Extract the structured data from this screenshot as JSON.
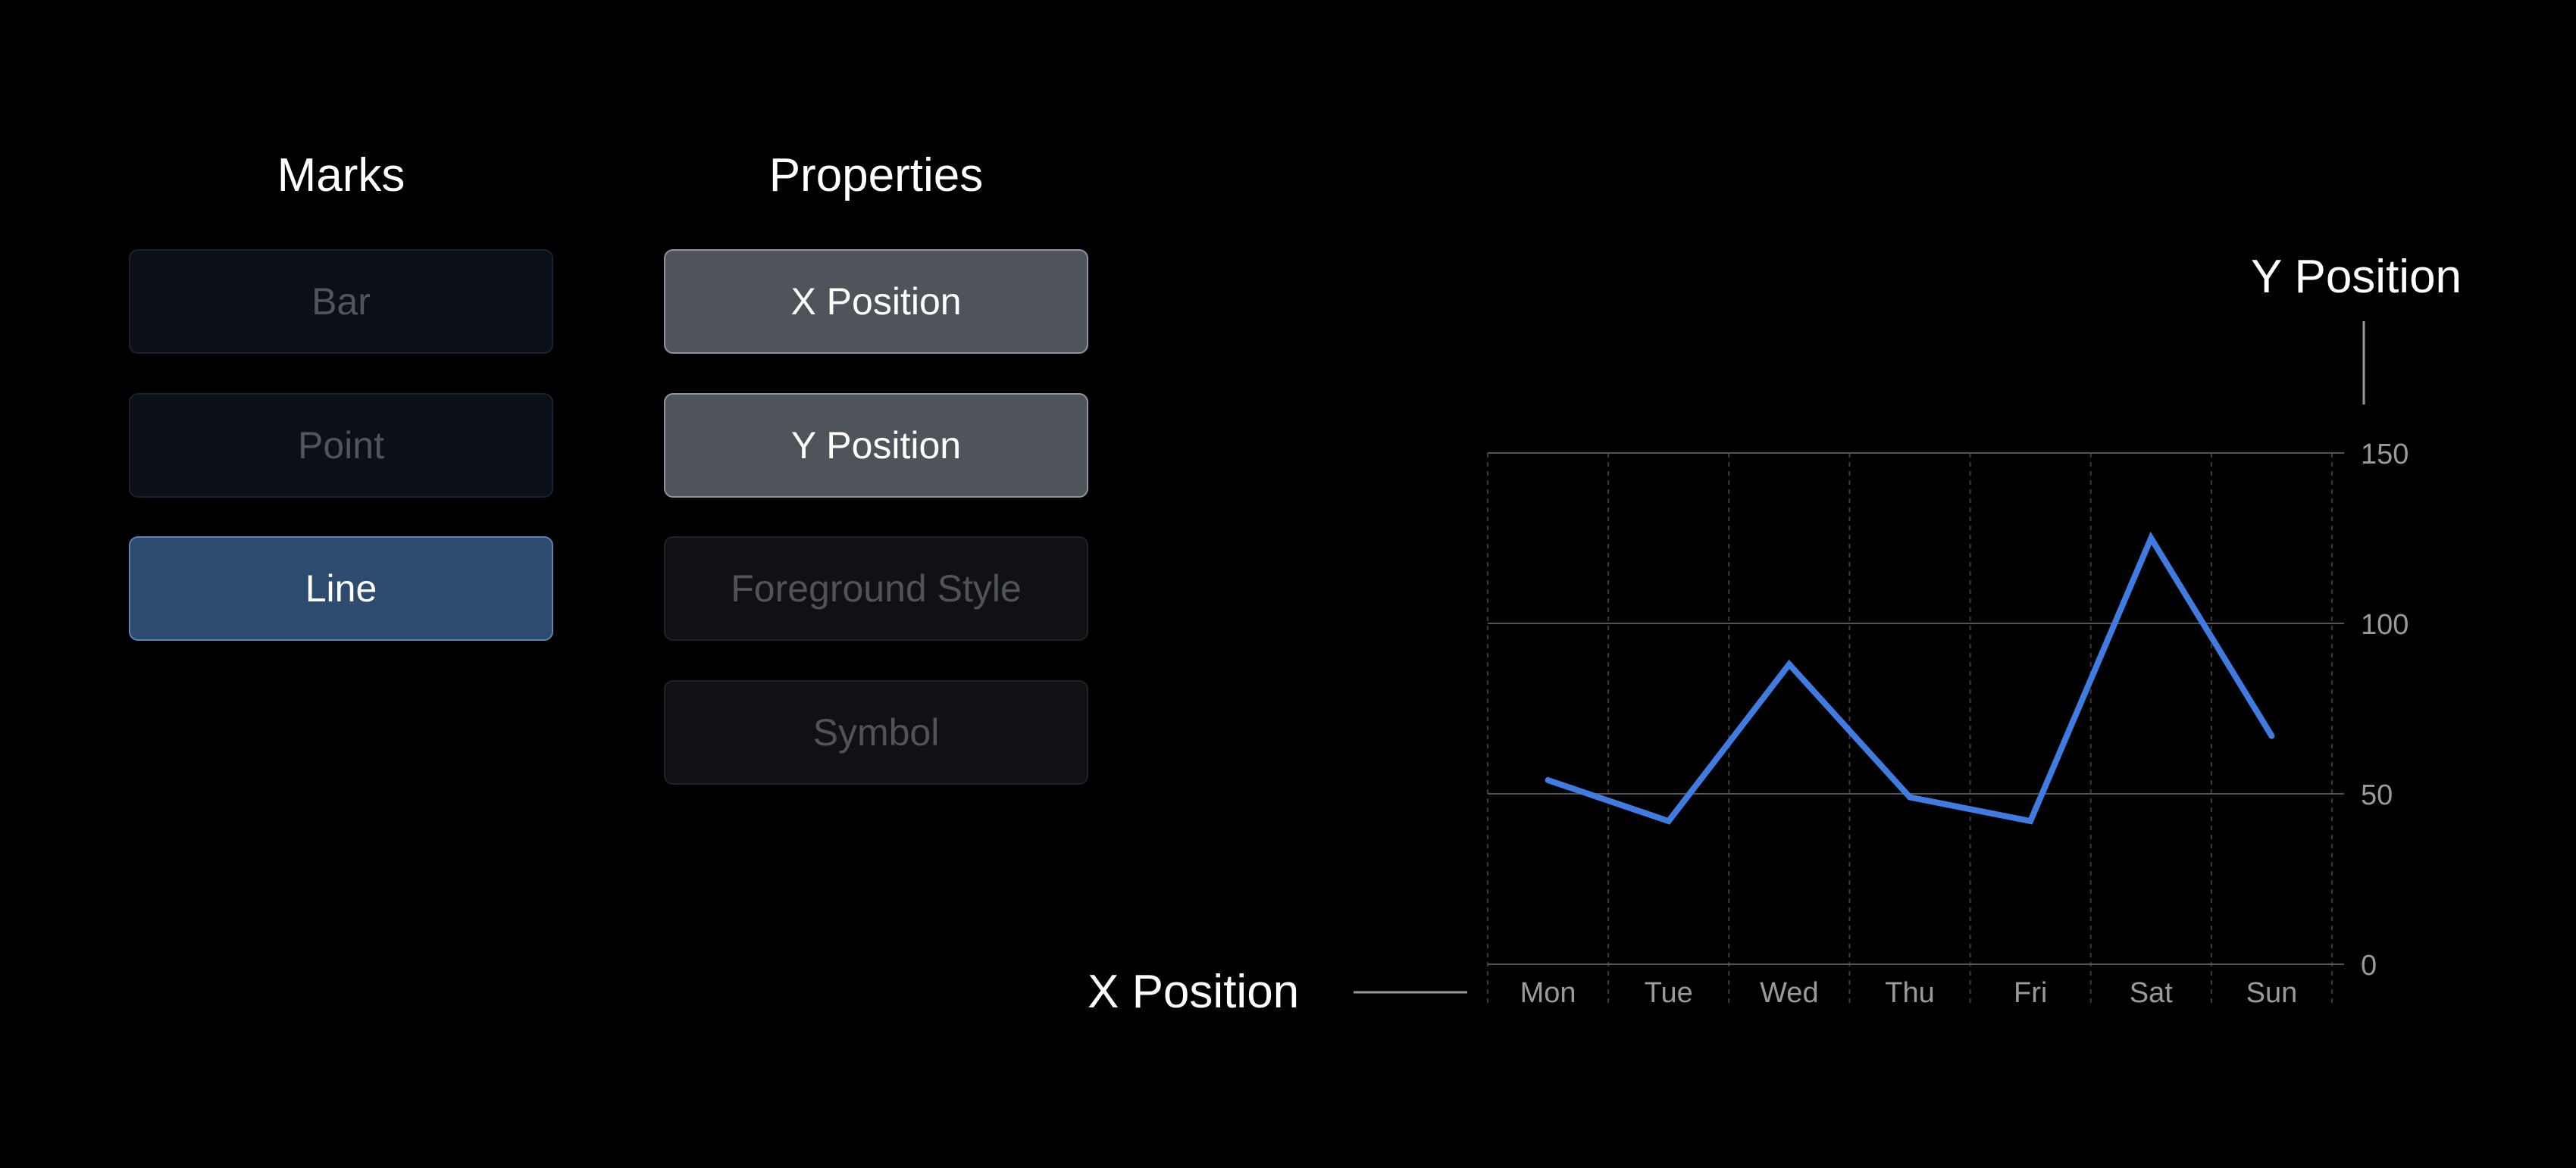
{
  "marks": {
    "heading": "Marks",
    "items": [
      {
        "label": "Bar",
        "state": "dim"
      },
      {
        "label": "Point",
        "state": "dim"
      },
      {
        "label": "Line",
        "state": "active"
      }
    ]
  },
  "properties": {
    "heading": "Properties",
    "items": [
      {
        "label": "X Position",
        "state": "active"
      },
      {
        "label": "Y Position",
        "state": "active"
      },
      {
        "label": "Foreground Style",
        "state": "dim"
      },
      {
        "label": "Symbol",
        "state": "dim"
      }
    ]
  },
  "callouts": {
    "x_axis": "X Position",
    "y_axis": "Y Position"
  },
  "colors": {
    "line": "#3f7be0",
    "active_mark": "#2d4a6f",
    "active_property": "#4f535a"
  },
  "chart_data": {
    "type": "line",
    "categories": [
      "Mon",
      "Tue",
      "Wed",
      "Thu",
      "Fri",
      "Sat",
      "Sun"
    ],
    "series": [
      {
        "values": [
          54,
          42,
          88,
          49,
          42,
          125,
          67
        ]
      }
    ],
    "title": "",
    "xlabel": "X Position",
    "ylabel": "Y Position",
    "ylim": [
      0,
      150
    ],
    "yticks": [
      0,
      50,
      100,
      150
    ],
    "y_axis_side": "right",
    "grid": true,
    "legend": "none"
  }
}
